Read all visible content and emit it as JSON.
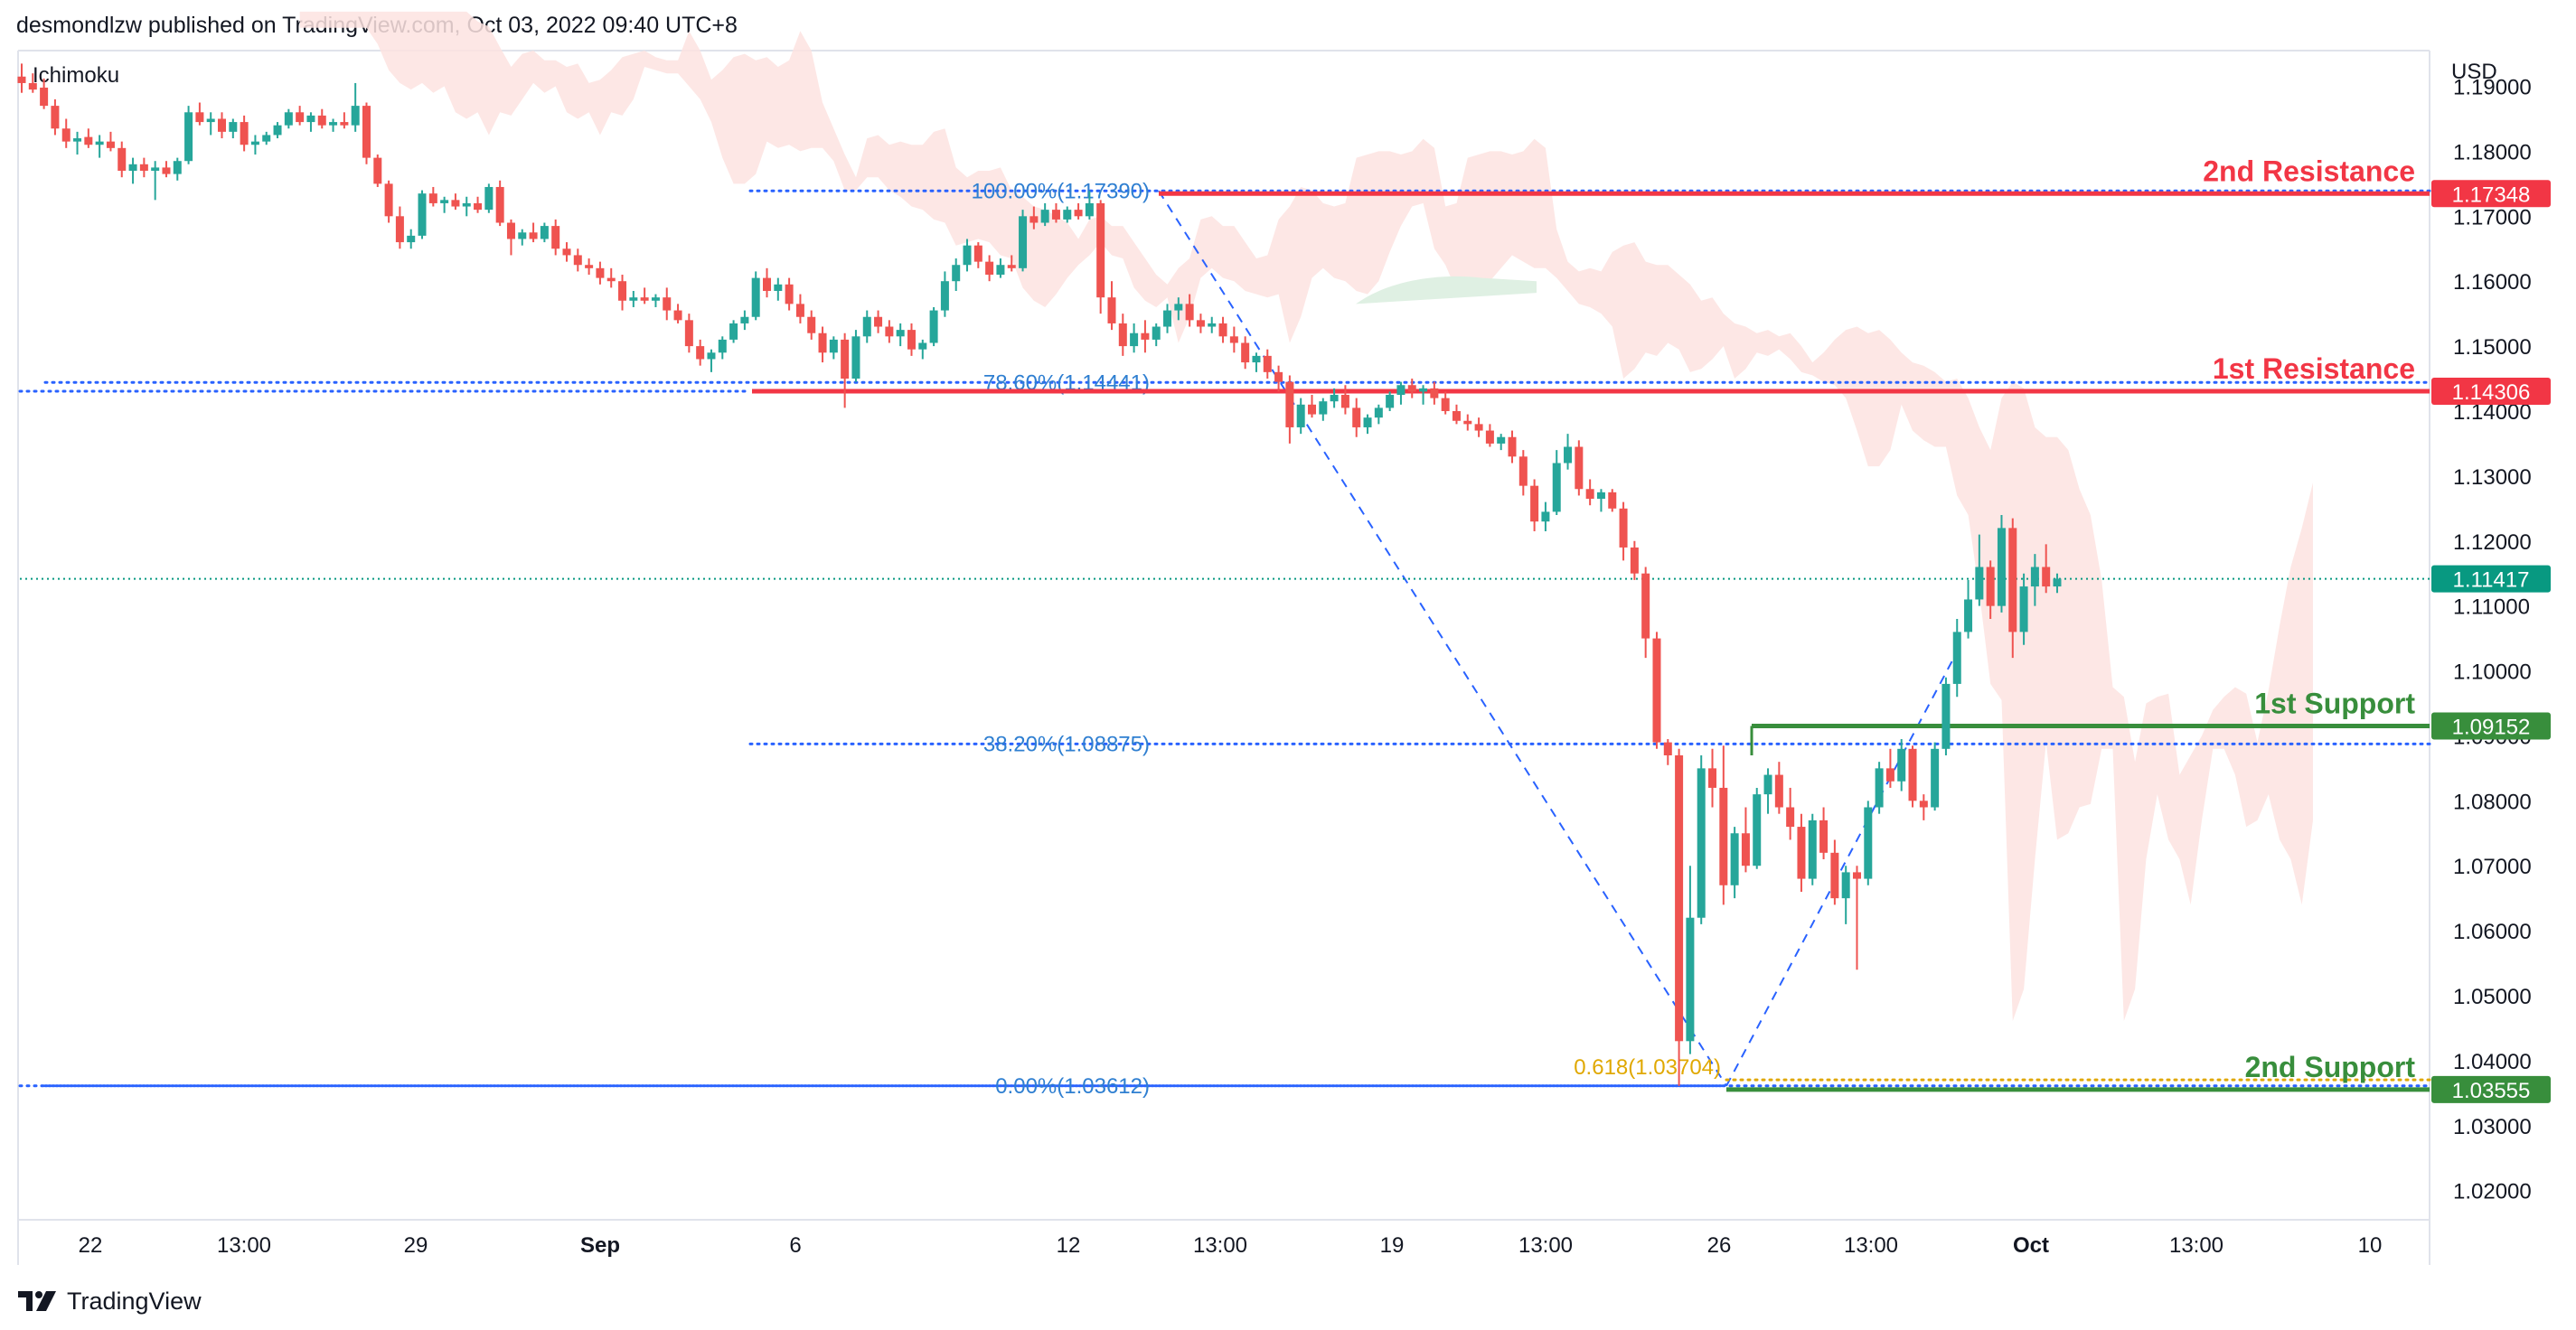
{
  "header": {
    "published_by": "desmondlzw published on TradingView.com, Oct 03, 2022 09:40 UTC+8"
  },
  "study": {
    "label": "Ichimoku"
  },
  "price_axis": {
    "currency": "USD"
  },
  "footer": {
    "brand": "TradingView",
    "logo_icon": "tradingview-logo-icon"
  },
  "colors": {
    "up": "#26a69a",
    "down": "#ef5350",
    "resistance": "#f23645",
    "support": "#388e3c",
    "fib": "#2962ff",
    "fib_text": "#2f7fd1",
    "fib_gold": "#e0a800",
    "current_price": "#089981",
    "cloud_red": "#fde3e1",
    "cloud_green": "#dff0e3",
    "grid_text": "#131722"
  },
  "chart_data": {
    "type": "candlestick",
    "instrument_quote": "USD",
    "ylim": [
      1.0155,
      1.1955
    ],
    "y_ticks": [
      "1.19000",
      "1.18000",
      "1.17000",
      "1.16000",
      "1.15000",
      "1.14000",
      "1.13000",
      "1.12000",
      "1.11000",
      "1.10000",
      "1.09000",
      "1.08000",
      "1.07000",
      "1.06000",
      "1.05000",
      "1.04000",
      "1.03000",
      "1.02000"
    ],
    "x_ticks": [
      "22",
      "13:00",
      "29",
      "Sep",
      "6",
      "12",
      "13:00",
      "19",
      "13:00",
      "26",
      "13:00",
      "Oct",
      "13:00",
      "10"
    ],
    "x_tick_bold": [
      "Sep",
      "Oct"
    ],
    "levels": [
      {
        "name": "2nd Resistance",
        "price": 1.17348,
        "label": "1.17348",
        "kind": "resistance"
      },
      {
        "name": "1st Resistance",
        "price": 1.14306,
        "label": "1.14306",
        "kind": "resistance"
      },
      {
        "name": "1st Support",
        "price": 1.09152,
        "label": "1.09152",
        "kind": "support"
      },
      {
        "name": "2nd Support",
        "price": 1.03555,
        "label": "1.03555",
        "kind": "support"
      }
    ],
    "current_price": {
      "price": 1.11417,
      "label": "1.11417"
    },
    "fibonacci": [
      {
        "label": "100.00%(1.17390)",
        "price": 1.1739
      },
      {
        "label": "78.60%(1.14441)",
        "price": 1.14441
      },
      {
        "label": "38.20%(1.08875)",
        "price": 1.08875
      },
      {
        "label": "0.00%(1.03612)",
        "price": 1.03612
      }
    ],
    "fib_extension": {
      "label": "0.618(1.03704)",
      "price": 1.03704
    },
    "candles": [
      [
        1.1915,
        1.1935,
        1.189,
        1.1905
      ],
      [
        1.1905,
        1.192,
        1.189,
        1.1895
      ],
      [
        1.1898,
        1.1912,
        1.1865,
        1.187
      ],
      [
        1.187,
        1.188,
        1.1825,
        1.1835
      ],
      [
        1.1835,
        1.185,
        1.1805,
        1.1815
      ],
      [
        1.1815,
        1.183,
        1.1795,
        1.182
      ],
      [
        1.1822,
        1.1835,
        1.1805,
        1.181
      ],
      [
        1.181,
        1.1825,
        1.179,
        1.1815
      ],
      [
        1.1815,
        1.183,
        1.18,
        1.1805
      ],
      [
        1.1805,
        1.1815,
        1.176,
        1.177
      ],
      [
        1.177,
        1.179,
        1.175,
        1.178
      ],
      [
        1.178,
        1.179,
        1.176,
        1.177
      ],
      [
        1.177,
        1.1785,
        1.1725,
        1.1775
      ],
      [
        1.1775,
        1.1785,
        1.176,
        1.1765
      ],
      [
        1.1765,
        1.179,
        1.1755,
        1.1785
      ],
      [
        1.1785,
        1.187,
        1.178,
        1.186
      ],
      [
        1.186,
        1.1875,
        1.184,
        1.1845
      ],
      [
        1.1845,
        1.186,
        1.1825,
        1.185
      ],
      [
        1.185,
        1.186,
        1.182,
        1.183
      ],
      [
        1.183,
        1.185,
        1.182,
        1.1845
      ],
      [
        1.1845,
        1.1855,
        1.18,
        1.181
      ],
      [
        1.181,
        1.1825,
        1.1795,
        1.1815
      ],
      [
        1.1815,
        1.183,
        1.181,
        1.1825
      ],
      [
        1.1825,
        1.1845,
        1.182,
        1.184
      ],
      [
        1.184,
        1.1865,
        1.1835,
        1.186
      ],
      [
        1.186,
        1.187,
        1.184,
        1.1845
      ],
      [
        1.1845,
        1.186,
        1.183,
        1.1855
      ],
      [
        1.1855,
        1.1865,
        1.1835,
        1.184
      ],
      [
        1.184,
        1.185,
        1.183,
        1.1845
      ],
      [
        1.1845,
        1.186,
        1.1835,
        1.184
      ],
      [
        1.184,
        1.1905,
        1.183,
        1.187
      ],
      [
        1.187,
        1.1875,
        1.178,
        1.179
      ],
      [
        1.179,
        1.1795,
        1.1745,
        1.175
      ],
      [
        1.175,
        1.1755,
        1.169,
        1.17
      ],
      [
        1.17,
        1.1715,
        1.165,
        1.166
      ],
      [
        1.166,
        1.168,
        1.165,
        1.167
      ],
      [
        1.167,
        1.174,
        1.1665,
        1.1735
      ],
      [
        1.1735,
        1.1745,
        1.1715,
        1.172
      ],
      [
        1.172,
        1.173,
        1.1705,
        1.1725
      ],
      [
        1.1725,
        1.1735,
        1.171,
        1.1715
      ],
      [
        1.1715,
        1.173,
        1.17,
        1.172
      ],
      [
        1.172,
        1.173,
        1.1705,
        1.171
      ],
      [
        1.171,
        1.175,
        1.1705,
        1.1745
      ],
      [
        1.1745,
        1.1755,
        1.1685,
        1.169
      ],
      [
        1.169,
        1.1695,
        1.164,
        1.1665
      ],
      [
        1.1665,
        1.168,
        1.1655,
        1.1675
      ],
      [
        1.1675,
        1.169,
        1.166,
        1.1665
      ],
      [
        1.1665,
        1.169,
        1.166,
        1.1685
      ],
      [
        1.1685,
        1.1695,
        1.164,
        1.165
      ],
      [
        1.165,
        1.166,
        1.163,
        1.164
      ],
      [
        1.164,
        1.165,
        1.1615,
        1.1625
      ],
      [
        1.1625,
        1.1635,
        1.161,
        1.162
      ],
      [
        1.162,
        1.163,
        1.1595,
        1.1605
      ],
      [
        1.1605,
        1.162,
        1.159,
        1.16
      ],
      [
        1.16,
        1.161,
        1.1555,
        1.157
      ],
      [
        1.157,
        1.1585,
        1.156,
        1.1575
      ],
      [
        1.1575,
        1.159,
        1.1565,
        1.157
      ],
      [
        1.157,
        1.158,
        1.156,
        1.1575
      ],
      [
        1.1575,
        1.159,
        1.154,
        1.1555
      ],
      [
        1.1555,
        1.1565,
        1.1535,
        1.154
      ],
      [
        1.154,
        1.155,
        1.149,
        1.15
      ],
      [
        1.15,
        1.151,
        1.147,
        1.148
      ],
      [
        1.148,
        1.1495,
        1.146,
        1.149
      ],
      [
        1.149,
        1.1515,
        1.148,
        1.151
      ],
      [
        1.151,
        1.154,
        1.1505,
        1.1535
      ],
      [
        1.1535,
        1.1555,
        1.1525,
        1.1545
      ],
      [
        1.1545,
        1.1615,
        1.154,
        1.1605
      ],
      [
        1.1605,
        1.162,
        1.1575,
        1.1585
      ],
      [
        1.1585,
        1.1605,
        1.157,
        1.1595
      ],
      [
        1.1595,
        1.1605,
        1.1555,
        1.1565
      ],
      [
        1.1565,
        1.158,
        1.1535,
        1.1545
      ],
      [
        1.1545,
        1.1555,
        1.151,
        1.152
      ],
      [
        1.152,
        1.153,
        1.1475,
        1.149
      ],
      [
        1.149,
        1.1515,
        1.148,
        1.151
      ],
      [
        1.151,
        1.152,
        1.1405,
        1.145
      ],
      [
        1.145,
        1.1525,
        1.1445,
        1.1515
      ],
      [
        1.1515,
        1.1555,
        1.1505,
        1.1545
      ],
      [
        1.1545,
        1.1555,
        1.152,
        1.153
      ],
      [
        1.153,
        1.154,
        1.1505,
        1.1515
      ],
      [
        1.1515,
        1.1535,
        1.15,
        1.1525
      ],
      [
        1.1525,
        1.1535,
        1.1485,
        1.1495
      ],
      [
        1.1495,
        1.151,
        1.148,
        1.1505
      ],
      [
        1.1505,
        1.156,
        1.15,
        1.1555
      ],
      [
        1.1555,
        1.1615,
        1.1545,
        1.16
      ],
      [
        1.16,
        1.1635,
        1.1585,
        1.1625
      ],
      [
        1.1625,
        1.1665,
        1.1615,
        1.1655
      ],
      [
        1.1655,
        1.166,
        1.162,
        1.163
      ],
      [
        1.163,
        1.164,
        1.16,
        1.161
      ],
      [
        1.161,
        1.1635,
        1.1605,
        1.1625
      ],
      [
        1.1625,
        1.164,
        1.1615,
        1.162
      ],
      [
        1.162,
        1.171,
        1.1615,
        1.17
      ],
      [
        1.17,
        1.1715,
        1.168,
        1.169
      ],
      [
        1.169,
        1.172,
        1.1685,
        1.171
      ],
      [
        1.171,
        1.172,
        1.169,
        1.1695
      ],
      [
        1.1695,
        1.1715,
        1.169,
        1.171
      ],
      [
        1.171,
        1.172,
        1.1695,
        1.17
      ],
      [
        1.17,
        1.1739,
        1.1695,
        1.172
      ],
      [
        1.172,
        1.1725,
        1.155,
        1.1575
      ],
      [
        1.1575,
        1.16,
        1.1525,
        1.1535
      ],
      [
        1.1535,
        1.155,
        1.1485,
        1.15
      ],
      [
        1.15,
        1.1535,
        1.149,
        1.152
      ],
      [
        1.152,
        1.154,
        1.149,
        1.151
      ],
      [
        1.151,
        1.1535,
        1.15,
        1.153
      ],
      [
        1.153,
        1.1565,
        1.152,
        1.1555
      ],
      [
        1.1555,
        1.1575,
        1.154,
        1.1565
      ],
      [
        1.1565,
        1.158,
        1.153,
        1.154
      ],
      [
        1.154,
        1.155,
        1.152,
        1.153
      ],
      [
        1.153,
        1.1545,
        1.152,
        1.1535
      ],
      [
        1.1535,
        1.1545,
        1.1505,
        1.1515
      ],
      [
        1.1515,
        1.153,
        1.149,
        1.1505
      ],
      [
        1.1505,
        1.1515,
        1.1465,
        1.1475
      ],
      [
        1.1475,
        1.149,
        1.146,
        1.1485
      ],
      [
        1.1485,
        1.1495,
        1.145,
        1.146
      ],
      [
        1.146,
        1.147,
        1.143,
        1.1445
      ],
      [
        1.1445,
        1.1455,
        1.135,
        1.1375
      ],
      [
        1.1375,
        1.142,
        1.1365,
        1.141
      ],
      [
        1.141,
        1.1425,
        1.139,
        1.1395
      ],
      [
        1.1395,
        1.142,
        1.1385,
        1.1415
      ],
      [
        1.1415,
        1.1435,
        1.1405,
        1.1425
      ],
      [
        1.1425,
        1.144,
        1.1395,
        1.1405
      ],
      [
        1.1405,
        1.142,
        1.136,
        1.1375
      ],
      [
        1.1375,
        1.1395,
        1.1365,
        1.139
      ],
      [
        1.139,
        1.141,
        1.138,
        1.1405
      ],
      [
        1.1405,
        1.143,
        1.14,
        1.1425
      ],
      [
        1.1425,
        1.1445,
        1.141,
        1.144
      ],
      [
        1.144,
        1.145,
        1.142,
        1.143
      ],
      [
        1.143,
        1.144,
        1.141,
        1.1435
      ],
      [
        1.1435,
        1.1445,
        1.141,
        1.142
      ],
      [
        1.142,
        1.143,
        1.1395,
        1.14
      ],
      [
        1.14,
        1.141,
        1.138,
        1.1385
      ],
      [
        1.1385,
        1.1395,
        1.137,
        1.138
      ],
      [
        1.138,
        1.139,
        1.136,
        1.137
      ],
      [
        1.137,
        1.138,
        1.1345,
        1.135
      ],
      [
        1.135,
        1.1365,
        1.134,
        1.136
      ],
      [
        1.136,
        1.137,
        1.132,
        1.133
      ],
      [
        1.133,
        1.134,
        1.127,
        1.1285
      ],
      [
        1.1285,
        1.1295,
        1.1215,
        1.123
      ],
      [
        1.123,
        1.126,
        1.1215,
        1.1245
      ],
      [
        1.1245,
        1.134,
        1.124,
        1.132
      ],
      [
        1.132,
        1.1365,
        1.131,
        1.1345
      ],
      [
        1.1345,
        1.1355,
        1.127,
        1.128
      ],
      [
        1.128,
        1.1295,
        1.1255,
        1.1265
      ],
      [
        1.1265,
        1.128,
        1.1245,
        1.1275
      ],
      [
        1.1275,
        1.128,
        1.1245,
        1.125
      ],
      [
        1.125,
        1.126,
        1.117,
        1.119
      ],
      [
        1.119,
        1.12,
        1.114,
        1.115
      ],
      [
        1.115,
        1.116,
        1.102,
        1.105
      ],
      [
        1.105,
        1.106,
        1.088,
        1.089
      ],
      [
        1.089,
        1.0895,
        1.0855,
        1.087
      ],
      [
        1.087,
        1.088,
        1.0361,
        1.043
      ],
      [
        1.043,
        1.07,
        1.041,
        1.062
      ],
      [
        1.062,
        1.087,
        1.061,
        1.085
      ],
      [
        1.085,
        1.088,
        1.079,
        1.082
      ],
      [
        1.082,
        1.0885,
        1.064,
        1.067
      ],
      [
        1.067,
        1.076,
        1.065,
        1.075
      ],
      [
        1.075,
        1.079,
        1.069,
        1.07
      ],
      [
        1.07,
        1.082,
        1.0695,
        1.081
      ],
      [
        1.081,
        1.085,
        1.078,
        1.084
      ],
      [
        1.084,
        1.086,
        1.078,
        1.079
      ],
      [
        1.079,
        1.082,
        1.074,
        1.076
      ],
      [
        1.076,
        1.078,
        1.066,
        1.068
      ],
      [
        1.068,
        1.078,
        1.067,
        1.077
      ],
      [
        1.077,
        1.079,
        1.071,
        1.072
      ],
      [
        1.072,
        1.074,
        1.064,
        1.065
      ],
      [
        1.065,
        1.07,
        1.061,
        1.069
      ],
      [
        1.069,
        1.07,
        1.054,
        1.068
      ],
      [
        1.068,
        1.08,
        1.067,
        1.079
      ],
      [
        1.079,
        1.086,
        1.078,
        1.085
      ],
      [
        1.085,
        1.088,
        1.082,
        1.083
      ],
      [
        1.083,
        1.0895,
        1.0815,
        1.088
      ],
      [
        1.088,
        1.0885,
        1.079,
        1.08
      ],
      [
        1.08,
        1.081,
        1.077,
        1.079
      ],
      [
        1.079,
        1.089,
        1.0785,
        1.088
      ],
      [
        1.088,
        1.099,
        1.087,
        1.098
      ],
      [
        1.098,
        1.108,
        1.096,
        1.106
      ],
      [
        1.106,
        1.114,
        1.105,
        1.111
      ],
      [
        1.111,
        1.121,
        1.11,
        1.116
      ],
      [
        1.116,
        1.117,
        1.108,
        1.11
      ],
      [
        1.11,
        1.124,
        1.109,
        1.122
      ],
      [
        1.122,
        1.1235,
        1.102,
        1.106
      ],
      [
        1.106,
        1.115,
        1.104,
        1.113
      ],
      [
        1.113,
        1.118,
        1.11,
        1.116
      ],
      [
        1.116,
        1.1195,
        1.112,
        1.113
      ],
      [
        1.113,
        1.115,
        1.112,
        1.1142
      ]
    ]
  }
}
